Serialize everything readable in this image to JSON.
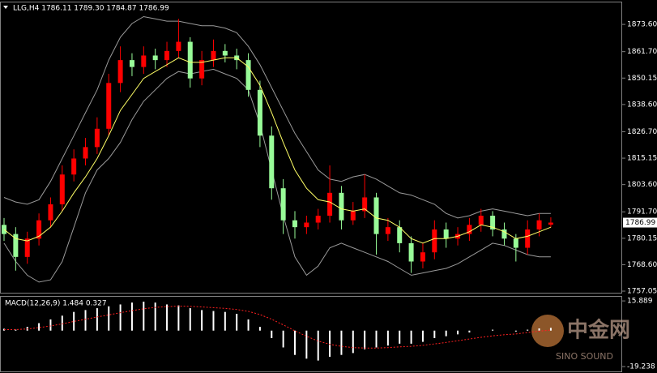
{
  "chart_data": [
    {
      "type": "candlestick",
      "header": "LLG,H4  1786.11 1789.30 1784.87 1786.99",
      "ylim": [
        1756,
        1883.2
      ],
      "yticks": [
        {
          "value": 1873.6,
          "label": "1873.60"
        },
        {
          "value": 1861.7,
          "label": "1861.70"
        },
        1850.15,
        {
          "value": 1838.6,
          "label": "1838.60"
        },
        {
          "value": 1826.7,
          "label": "1826.70"
        },
        1815.15,
        {
          "value": 1803.6,
          "label": "1803.60"
        },
        {
          "value": 1791.7,
          "label": "1791.70"
        },
        1780.15,
        {
          "value": 1768.6,
          "label": "1768.60"
        },
        1757.05
      ],
      "last_price": 1786.99,
      "up_color": "#ff0000",
      "down_color": "#98fb98",
      "ma_color": "#ffff66",
      "band_color": "#9a9a9a",
      "open": [
        1786,
        1782,
        1772,
        1780,
        1788,
        1795,
        1808,
        1815,
        1820,
        1828,
        1848,
        1858,
        1855,
        1860,
        1858,
        1862,
        1866,
        1850,
        1858,
        1862,
        1860,
        1858,
        1845,
        1825,
        1802,
        1788,
        1785,
        1787,
        1790,
        1800,
        1788,
        1792,
        1798,
        1782,
        1785,
        1778,
        1770,
        1774,
        1784,
        1780,
        1782,
        1786,
        1790,
        1784,
        1780,
        1776,
        1784,
        1786.11
      ],
      "high": [
        1789,
        1785,
        1783,
        1791,
        1798,
        1812,
        1819,
        1824,
        1833,
        1852,
        1864,
        1861,
        1864,
        1863,
        1866,
        1876,
        1868,
        1862,
        1867,
        1865,
        1863,
        1861,
        1849,
        1829,
        1806,
        1792,
        1790,
        1793,
        1812,
        1803,
        1796,
        1808,
        1800,
        1789,
        1788,
        1781,
        1778,
        1788,
        1787,
        1785,
        1789,
        1793,
        1792,
        1787,
        1782,
        1788,
        1791,
        1789.3
      ],
      "low": [
        1779,
        1766,
        1769,
        1777,
        1785,
        1792,
        1805,
        1812,
        1817,
        1825,
        1844,
        1851,
        1852,
        1854,
        1855,
        1859,
        1846,
        1847,
        1855,
        1857,
        1854,
        1842,
        1820,
        1797,
        1782,
        1780,
        1782,
        1784,
        1787,
        1784,
        1786,
        1789,
        1773,
        1779,
        1774,
        1765,
        1767,
        1771,
        1776,
        1777,
        1779,
        1783,
        1781,
        1777,
        1770,
        1773,
        1781,
        1784.87
      ],
      "close": [
        1782,
        1772,
        1780,
        1788,
        1795,
        1808,
        1815,
        1820,
        1828,
        1848,
        1858,
        1855,
        1860,
        1858,
        1862,
        1866,
        1850,
        1858,
        1862,
        1860,
        1858,
        1845,
        1825,
        1802,
        1788,
        1785,
        1787,
        1790,
        1800,
        1788,
        1792,
        1798,
        1782,
        1785,
        1778,
        1770,
        1774,
        1784,
        1780,
        1782,
        1786,
        1790,
        1784,
        1780,
        1776,
        1784,
        1788,
        1786.99
      ],
      "ma": [
        1784,
        1780,
        1779,
        1781,
        1785,
        1792,
        1800,
        1807,
        1815,
        1825,
        1836,
        1843,
        1850,
        1853,
        1856,
        1859,
        1857,
        1857,
        1858,
        1859,
        1859,
        1855,
        1847,
        1835,
        1822,
        1810,
        1802,
        1797,
        1796,
        1793,
        1792,
        1793,
        1789,
        1788,
        1785,
        1780,
        1778,
        1780,
        1780,
        1781,
        1783,
        1786,
        1785,
        1783,
        1780,
        1781,
        1783,
        1785
      ],
      "upper": [
        1798,
        1796,
        1795,
        1797,
        1805,
        1815,
        1825,
        1835,
        1845,
        1858,
        1868,
        1874,
        1877,
        1876,
        1875,
        1875,
        1874,
        1873,
        1873,
        1872,
        1870,
        1864,
        1856,
        1846,
        1836,
        1826,
        1818,
        1810,
        1806,
        1805,
        1807,
        1808,
        1806,
        1803,
        1800,
        1799,
        1797,
        1795,
        1791,
        1789,
        1790,
        1792,
        1793,
        1792,
        1791,
        1790,
        1791,
        1791
      ],
      "lower": [
        1778,
        1770,
        1764,
        1761,
        1762,
        1770,
        1785,
        1800,
        1810,
        1815,
        1822,
        1832,
        1840,
        1845,
        1850,
        1853,
        1852,
        1853,
        1854,
        1852,
        1850,
        1845,
        1830,
        1810,
        1790,
        1772,
        1764,
        1768,
        1776,
        1778,
        1776,
        1774,
        1772,
        1770,
        1767,
        1764,
        1765,
        1766,
        1767,
        1769,
        1772,
        1775,
        1778,
        1777,
        1775,
        1773,
        1772,
        1772
      ]
    },
    {
      "type": "macd",
      "title": "MACD(12,26,9) 1.484 0.327",
      "ylim": [
        -21.8,
        18.1
      ],
      "yticks": [
        15.889,
        -19.238
      ],
      "hist_color": "#ffffff",
      "signal_color": "#ff2020",
      "hist": [
        1,
        0.5,
        2,
        4,
        6,
        8,
        10,
        11,
        12,
        13,
        14,
        15,
        15.5,
        15,
        14,
        13.5,
        12,
        11,
        10.5,
        10,
        9,
        6,
        2,
        -4,
        -9,
        -13,
        -15,
        -16,
        -14,
        -13,
        -12,
        -10,
        -9,
        -8,
        -7,
        -7,
        -6,
        -4,
        -3,
        -2,
        -1,
        0,
        0.5,
        0,
        -0.5,
        0.5,
        1.2,
        1.484
      ],
      "signal": [
        0.5,
        0.6,
        0.9,
        1.6,
        2.5,
        3.6,
        4.9,
        6.1,
        7.3,
        8.4,
        9.6,
        10.7,
        11.7,
        12.4,
        12.8,
        13.1,
        13,
        12.7,
        12.3,
        11.9,
        11.3,
        10.3,
        8.6,
        6.1,
        3.1,
        -0.1,
        -3,
        -5.6,
        -7.3,
        -8.4,
        -9.1,
        -9.3,
        -9.3,
        -9.1,
        -8.7,
        -8.4,
        -7.9,
        -7.1,
        -6.3,
        -5.4,
        -4.5,
        -3.6,
        -2.8,
        -2.2,
        -1.8,
        -1,
        -0.3,
        0.327
      ]
    }
  ],
  "watermark": {
    "brand": "中金网",
    "sub": "SINO SOUND"
  }
}
